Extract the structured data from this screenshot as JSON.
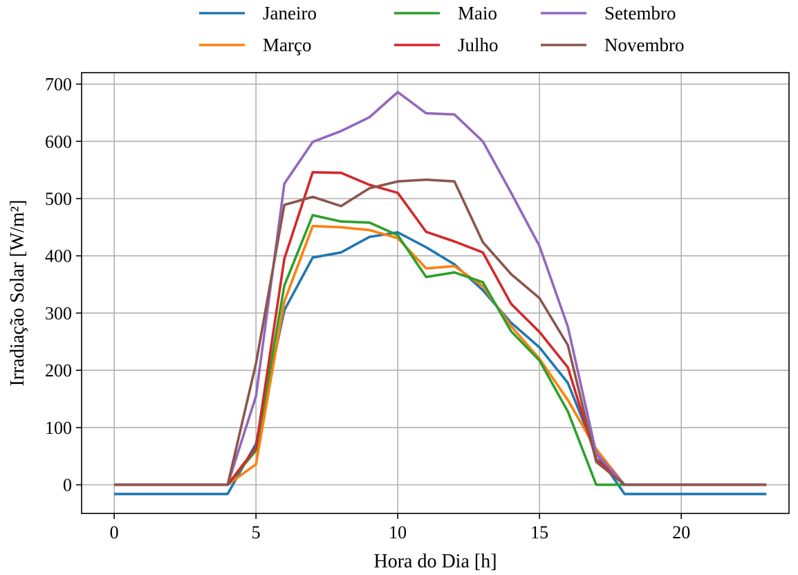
{
  "chart_data": {
    "type": "line",
    "title": "",
    "xlabel": "Hora do Dia [h]",
    "ylabel": "Irradiação Solar [W/m²]",
    "xlim": [
      -1.15,
      23.8
    ],
    "ylim": [
      -50,
      720
    ],
    "xticks": [
      0,
      5,
      10,
      15,
      20
    ],
    "yticks": [
      0,
      100,
      200,
      300,
      400,
      500,
      600,
      700
    ],
    "grid": true,
    "legend_position": "top-center",
    "legend_columns": 3,
    "x": [
      0,
      1,
      2,
      3,
      4,
      5,
      6,
      7,
      8,
      9,
      10,
      11,
      12,
      13,
      14,
      15,
      16,
      17,
      18,
      19,
      20,
      21,
      22,
      23
    ],
    "series": [
      {
        "name": "Janeiro",
        "color": "#1f77b4",
        "values": [
          -16,
          -16,
          -16,
          -16,
          -16,
          72,
          305,
          397,
          406,
          433,
          441,
          415,
          385,
          340,
          283,
          240,
          178,
          55,
          -16,
          -16,
          -16,
          -16,
          -16,
          -16
        ]
      },
      {
        "name": "Março",
        "color": "#ff7f0e",
        "values": [
          0,
          0,
          0,
          0,
          0,
          36,
          320,
          452,
          450,
          445,
          431,
          378,
          382,
          347,
          277,
          220,
          148,
          62,
          0,
          0,
          0,
          0,
          0,
          0
        ]
      },
      {
        "name": "Maio",
        "color": "#2ca02c",
        "values": [
          0,
          0,
          0,
          0,
          0,
          60,
          348,
          471,
          460,
          458,
          436,
          363,
          371,
          354,
          268,
          217,
          128,
          0,
          0,
          0,
          0,
          0,
          0,
          0
        ]
      },
      {
        "name": "Julho",
        "color": "#d62728",
        "values": [
          0,
          0,
          0,
          0,
          0,
          65,
          395,
          546,
          545,
          524,
          510,
          442,
          425,
          406,
          316,
          267,
          205,
          45,
          0,
          0,
          0,
          0,
          0,
          0
        ]
      },
      {
        "name": "Setembro",
        "color": "#9467bd",
        "values": [
          0,
          0,
          0,
          0,
          0,
          155,
          526,
          599,
          618,
          642,
          686,
          649,
          647,
          600,
          510,
          417,
          276,
          55,
          0,
          0,
          0,
          0,
          0,
          0
        ]
      },
      {
        "name": "Novembro",
        "color": "#8c564b",
        "values": [
          0,
          0,
          0,
          0,
          0,
          212,
          489,
          503,
          487,
          518,
          530,
          533,
          530,
          424,
          368,
          326,
          244,
          40,
          0,
          0,
          0,
          0,
          0,
          0
        ]
      }
    ]
  }
}
